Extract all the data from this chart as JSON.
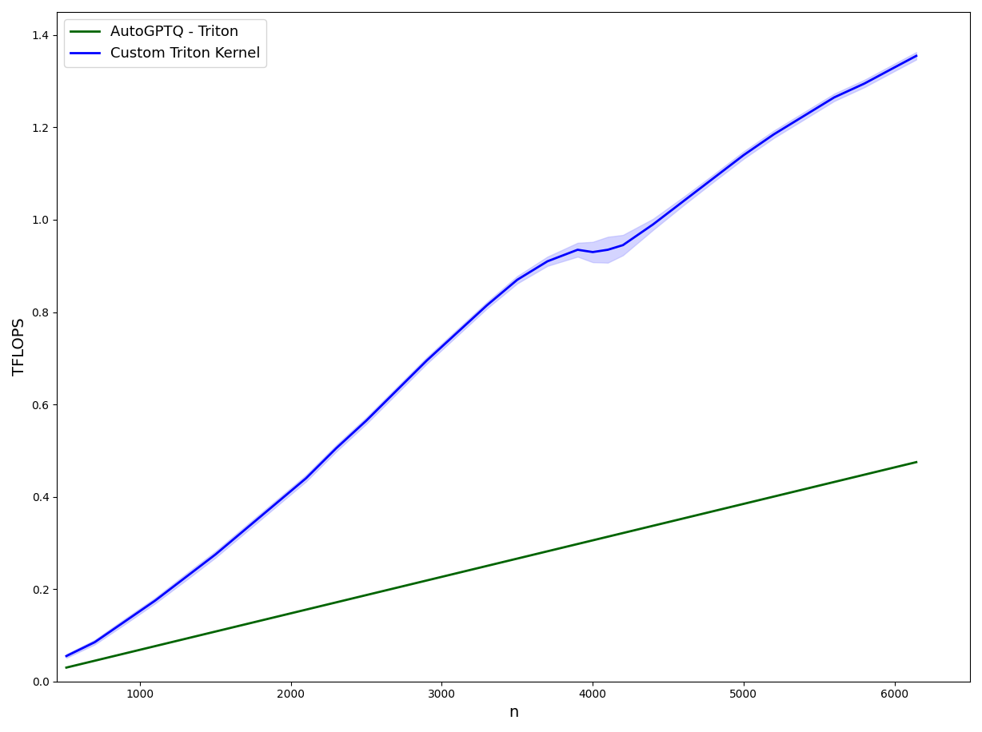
{
  "xlabel": "n",
  "ylabel": "TFLOPS",
  "legend": [
    "AutoGPTQ - Triton",
    "Custom Triton Kernel"
  ],
  "line_colors": [
    "#006400",
    "#0000ff"
  ],
  "ci_color": "#aaaaff",
  "blue_x": [
    512,
    700,
    900,
    1100,
    1300,
    1500,
    1700,
    1900,
    2100,
    2300,
    2500,
    2700,
    2900,
    3100,
    3300,
    3500,
    3700,
    3900,
    4000,
    4100,
    4200,
    4400,
    4600,
    4800,
    5000,
    5200,
    5400,
    5600,
    5800,
    6000,
    6144
  ],
  "blue_y": [
    0.055,
    0.085,
    0.13,
    0.175,
    0.225,
    0.275,
    0.33,
    0.385,
    0.44,
    0.505,
    0.565,
    0.63,
    0.695,
    0.755,
    0.815,
    0.87,
    0.91,
    0.935,
    0.93,
    0.935,
    0.945,
    0.99,
    1.04,
    1.09,
    1.14,
    1.185,
    1.225,
    1.265,
    1.295,
    1.33,
    1.355
  ],
  "blue_ci": [
    0.004,
    0.005,
    0.006,
    0.006,
    0.007,
    0.007,
    0.007,
    0.007,
    0.007,
    0.007,
    0.007,
    0.007,
    0.007,
    0.007,
    0.007,
    0.008,
    0.01,
    0.015,
    0.022,
    0.028,
    0.022,
    0.012,
    0.009,
    0.008,
    0.008,
    0.008,
    0.008,
    0.008,
    0.008,
    0.008,
    0.008
  ],
  "green_x": [
    512,
    6144
  ],
  "green_y": [
    0.03,
    0.475
  ],
  "ylim": [
    0.0,
    1.45
  ],
  "xlim": [
    450,
    6500
  ],
  "figsize": [
    12.28,
    9.16
  ],
  "dpi": 100
}
